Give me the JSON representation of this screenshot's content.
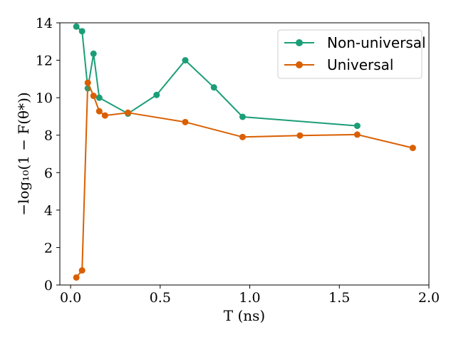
{
  "chart_data": {
    "type": "line",
    "xlabel": "T (ns)",
    "ylabel": "−log₁₀(1 − F(θ*))",
    "xlim": [
      -0.06,
      2.0
    ],
    "ylim": [
      0,
      14
    ],
    "xticks": [
      0.0,
      0.5,
      1.0,
      1.5,
      2.0
    ],
    "xtick_labels": [
      "0.0",
      "0.5",
      "1.0",
      "1.5",
      "2.0"
    ],
    "yticks": [
      0,
      2,
      4,
      6,
      8,
      10,
      12,
      14
    ],
    "ytick_labels": [
      "0",
      "2",
      "4",
      "6",
      "8",
      "10",
      "12",
      "14"
    ],
    "grid": false,
    "legend_position": "top-right",
    "series": [
      {
        "name": "Non-universal",
        "color": "#1b9e77",
        "x": [
          0.032,
          0.064,
          0.096,
          0.128,
          0.16,
          0.32,
          0.48,
          0.64,
          0.8,
          0.96,
          1.6
        ],
        "y": [
          13.8,
          13.55,
          10.5,
          12.35,
          10.0,
          9.15,
          10.15,
          12.0,
          10.55,
          8.98,
          8.5
        ]
      },
      {
        "name": "Universal",
        "color": "#d95f02",
        "x": [
          0.032,
          0.064,
          0.096,
          0.128,
          0.16,
          0.192,
          0.32,
          0.64,
          0.96,
          1.28,
          1.6,
          1.91
        ],
        "y": [
          0.4,
          0.78,
          10.8,
          10.1,
          9.28,
          9.05,
          9.2,
          8.7,
          7.9,
          7.98,
          8.03,
          7.32
        ]
      }
    ]
  }
}
